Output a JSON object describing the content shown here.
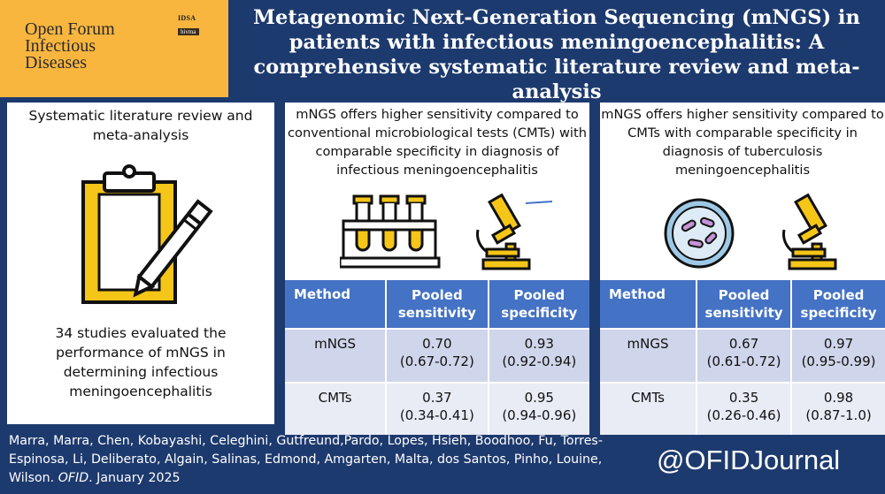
{
  "logo": {
    "journal_name": "Open Forum\nInfectious\nDiseases",
    "badge_top": "IDSA",
    "badge_bottom": "hivma"
  },
  "title": "Metagenomic Next-Generation Sequencing (mNGS) in patients with infectious meningoencephalitis: A comprehensive systematic literature review and meta-analysis",
  "panel1": {
    "heading": "Systematic literature review and meta-analysis",
    "summary": "34 studies evaluated the performance of mNGS in determining infectious meningoencephalitis"
  },
  "panel2": {
    "heading": "mNGS offers higher sensitivity compared to conventional microbiological tests (CMTs) with comparable specificity in diagnosis of infectious meningoencephalitis",
    "table": {
      "headers": [
        "Method",
        "Pooled sensitivity",
        "Pooled specificity"
      ],
      "rows": [
        {
          "method": "mNGS",
          "sens": "0.70",
          "sens_ci": "(0.67-0.72)",
          "spec": "0.93",
          "spec_ci": "(0.92-0.94)"
        },
        {
          "method": "CMTs",
          "sens": "0.37",
          "sens_ci": "(0.34-0.41)",
          "spec": "0.95",
          "spec_ci": "(0.94-0.96)"
        }
      ]
    }
  },
  "panel3": {
    "heading": "mNGS offers higher sensitivity compared to CMTs with comparable specificity in diagnosis of tuberculosis meningoencephalitis",
    "table": {
      "headers": [
        "Method",
        "Pooled sensitivity",
        "Pooled specificity"
      ],
      "rows": [
        {
          "method": "mNGS",
          "sens": "0.67",
          "sens_ci": "(0.61-0.72)",
          "spec": "0.97",
          "spec_ci": "(0.95-0.99)"
        },
        {
          "method": "CMTs",
          "sens": "0.35",
          "sens_ci": "(0.26-0.46)",
          "spec": "0.98",
          "spec_ci": "(0.87-1.0)"
        }
      ]
    }
  },
  "footer": {
    "authors": "Marra, Marra, Chen, Kobayashi, Celeghini, Gutfreund,Pardo, Lopes, Hsieh, Boodhoo, Fu, Torres-Espinosa, Li, Deliberato, Algain, Salinas, Edmond, Amgarten, Malta, dos Santos, Pinho, Louine, Wilson.",
    "journal_abbrev": "OFID",
    "date": ". January 2025",
    "handle": "@OFIDJournal"
  },
  "colors": {
    "navy": "#1d3a6e",
    "logo_orange": "#f8b63f",
    "table_header": "#4472c4",
    "icon_yellow": "#f5c518"
  },
  "icons": [
    "clipboard-pencil-icon",
    "test-tubes-icon",
    "microscope-icon",
    "petri-dish-icon"
  ]
}
